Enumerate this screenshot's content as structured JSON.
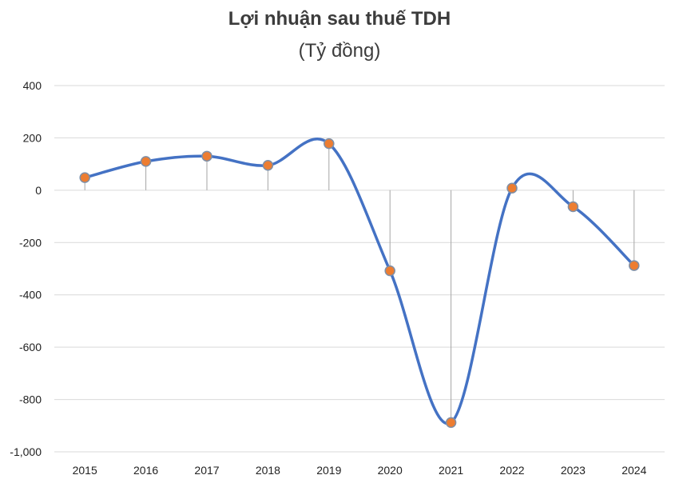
{
  "chart_data": {
    "type": "line",
    "title": "Lợi nhuận sau thuế TDH",
    "subtitle": "(Tỷ đồng)",
    "categories": [
      "2015",
      "2016",
      "2017",
      "2018",
      "2019",
      "2020",
      "2021",
      "2022",
      "2023",
      "2024"
    ],
    "series": [
      {
        "values": [
          48,
          110,
          130,
          95,
          178,
          -308,
          -888,
          8,
          -63,
          -288
        ]
      }
    ],
    "ylim": [
      -1000,
      400
    ],
    "yticks": [
      400,
      200,
      0,
      -200,
      -400,
      -600,
      -800,
      -1000
    ],
    "ytick_labels": [
      "400",
      "200",
      "0",
      "-200",
      "-400",
      "-600",
      "-800",
      "-1,000"
    ],
    "grid": true,
    "smooth": true,
    "drop_lines": true,
    "colors": {
      "line": "#4472C4",
      "marker_fill": "#ED7D31",
      "marker_edge": "#7F8FA6",
      "grid": "#D9D9D9",
      "drop_line": "#A6A6A6"
    }
  }
}
